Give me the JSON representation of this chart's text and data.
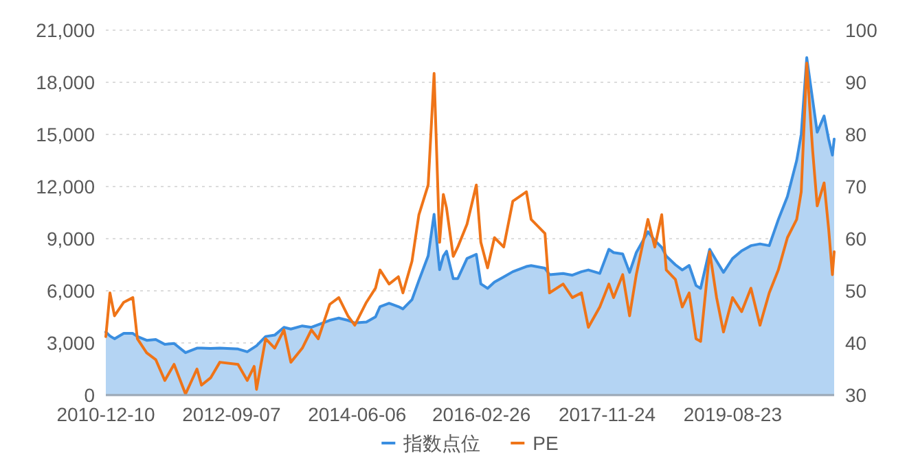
{
  "chart_data": {
    "type": "line",
    "grid": "y",
    "legend": "bottom",
    "xlim": [
      "2010-12-10",
      "2021-01-18"
    ],
    "xticks": [
      "2010-12-10",
      "2012-09-07",
      "2014-06-06",
      "2016-02-26",
      "2017-11-24",
      "2019-08-23"
    ],
    "ylim": [
      0,
      21000
    ],
    "yticks": [
      0,
      {
        "value": 3000,
        "label": "3,000"
      },
      {
        "value": 6000,
        "label": "6,000"
      },
      {
        "value": 9000,
        "label": "9,000"
      },
      {
        "value": 12000,
        "label": "12,000"
      },
      {
        "value": 15000,
        "label": "15,000"
      },
      {
        "value": 18000,
        "label": "18,000"
      },
      {
        "value": 21000,
        "label": "21,000"
      }
    ],
    "y2lim": [
      30,
      100
    ],
    "y2ticks": [
      30,
      40,
      50,
      60,
      70,
      80,
      90,
      100
    ],
    "x": [
      "2010-12-10",
      "2010-12-31",
      "2011-01-23",
      "2011-03-11",
      "2011-04-26",
      "2011-05-19",
      "2011-07-05",
      "2011-08-20",
      "2011-10-05",
      "2011-11-21",
      "2012-01-18",
      "2012-03-16",
      "2012-04-08",
      "2012-05-24",
      "2012-07-10",
      "2012-10-10",
      "2012-11-26",
      "2012-12-31",
      "2013-01-12",
      "2013-02-27",
      "2013-04-14",
      "2013-05-31",
      "2013-07-05",
      "2013-09-01",
      "2013-10-17",
      "2013-11-21",
      "2014-01-18",
      "2014-03-05",
      "2014-04-20",
      "2014-05-25",
      "2014-07-23",
      "2014-09-07",
      "2014-09-30",
      "2014-11-15",
      "2015-01-01",
      "2015-01-24",
      "2015-03-11",
      "2015-04-15",
      "2015-06-01",
      "2015-07-01",
      "2015-07-29",
      "2015-08-17",
      "2015-09-02",
      "2015-10-06",
      "2015-10-29",
      "2015-12-15",
      "2016-01-31",
      "2016-02-23",
      "2016-03-28",
      "2016-05-02",
      "2016-06-18",
      "2016-08-03",
      "2016-10-11",
      "2016-11-04",
      "2017-01-13",
      "2017-02-05",
      "2017-04-15",
      "2017-06-01",
      "2017-07-17",
      "2017-08-21",
      "2017-10-18",
      "2017-12-03",
      "2017-12-27",
      "2018-02-11",
      "2018-03-18",
      "2018-04-21",
      "2018-06-19",
      "2018-07-24",
      "2018-08-28",
      "2018-09-20",
      "2018-11-05",
      "2018-12-10",
      "2019-01-14",
      "2019-02-18",
      "2019-03-13",
      "2019-04-28",
      "2019-06-02",
      "2019-07-07",
      "2019-08-22",
      "2019-10-07",
      "2019-11-23",
      "2020-01-08",
      "2020-02-24",
      "2020-04-10",
      "2020-05-26",
      "2020-07-12",
      "2020-08-04",
      "2020-09-01",
      "2020-10-01",
      "2020-10-24",
      "2020-11-28",
      "2020-12-21",
      "2021-01-09",
      "2021-01-18"
    ],
    "series": [
      {
        "name": "指数点位",
        "type": "area",
        "color": "#3a8ee0",
        "values": [
          3630,
          3400,
          3240,
          3550,
          3550,
          3370,
          3150,
          3200,
          2920,
          2970,
          2440,
          2700,
          2700,
          2680,
          2700,
          2650,
          2490,
          2750,
          2840,
          3370,
          3450,
          3900,
          3800,
          3980,
          3900,
          4050,
          4300,
          4430,
          4300,
          4150,
          4200,
          4500,
          5090,
          5280,
          5090,
          4960,
          5490,
          6600,
          8010,
          10400,
          7210,
          8000,
          8280,
          6700,
          6700,
          7860,
          8100,
          6400,
          6140,
          6500,
          6800,
          7100,
          7400,
          7450,
          7300,
          6930,
          7000,
          6900,
          7100,
          7200,
          7000,
          8390,
          8200,
          8120,
          7060,
          8200,
          9400,
          8900,
          8500,
          8000,
          7500,
          7200,
          7460,
          6300,
          6140,
          8390,
          7720,
          7060,
          7860,
          8300,
          8600,
          8700,
          8600,
          10100,
          11430,
          13500,
          15000,
          19420,
          16980,
          15130,
          16060,
          14730,
          13810,
          14730
        ]
      },
      {
        "name": "PE",
        "axis": "y2",
        "color": "#ef7418",
        "values": [
          41.2,
          49.6,
          45.2,
          47.8,
          48.7,
          40.8,
          38.1,
          36.8,
          32.8,
          35.9,
          30.2,
          35.0,
          31.9,
          33.3,
          36.3,
          35.9,
          32.8,
          35.5,
          31.1,
          40.8,
          39.0,
          42.5,
          36.3,
          39.0,
          42.5,
          40.8,
          47.4,
          48.7,
          45.2,
          43.4,
          47.8,
          50.5,
          54.0,
          51.3,
          52.7,
          49.6,
          55.7,
          64.6,
          70.3,
          91.7,
          59.3,
          68.5,
          65.9,
          56.6,
          58.4,
          62.8,
          70.3,
          59.3,
          54.4,
          60.2,
          58.4,
          67.2,
          69.0,
          63.7,
          61.0,
          49.6,
          51.3,
          48.7,
          49.6,
          43.0,
          46.9,
          51.3,
          48.7,
          53.1,
          45.2,
          53.1,
          63.7,
          58.4,
          64.6,
          54.0,
          52.2,
          46.9,
          49.6,
          40.8,
          40.3,
          57.5,
          48.7,
          42.1,
          48.7,
          46.0,
          50.5,
          43.4,
          49.6,
          54.0,
          60.2,
          63.7,
          69.0,
          93.7,
          76.9,
          66.3,
          70.7,
          61.9,
          53.1,
          57.5
        ]
      }
    ]
  }
}
